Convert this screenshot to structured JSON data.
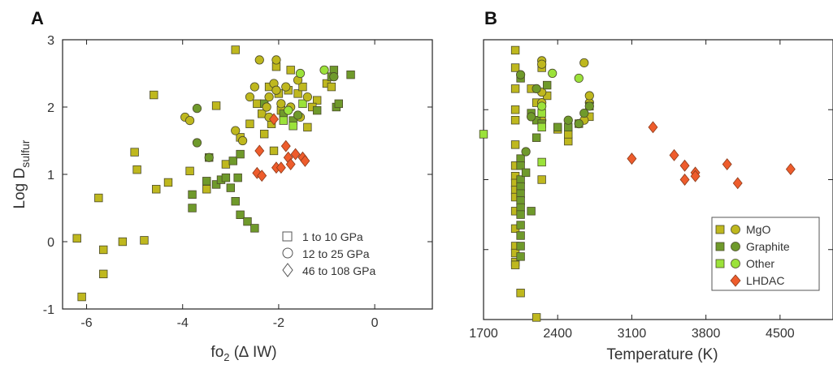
{
  "colors": {
    "mgo": "#bfb81e",
    "graphite": "#6f9a2b",
    "other": "#9be23a",
    "lhdac": "#ee5c2c",
    "mark_stroke": "#4a4a2a",
    "axis": "#222222"
  },
  "chart_data": [
    {
      "type": "scatter",
      "panel": "A",
      "title": "",
      "xlabel": "fo₂ (Δ IW)",
      "ylabel": "Log D_sulfur",
      "ylabel_main": "Log D",
      "ylabel_sub": "sulfur",
      "xlabel_main": "fo",
      "xlabel_sub": "2",
      "xlabel_tail": " (∆ IW)",
      "xlim": [
        -6.5,
        1.2
      ],
      "ylim": [
        -1,
        3
      ],
      "xticks": [
        -6,
        -4,
        -2,
        0
      ],
      "xtick_labels": [
        "-6",
        "-4",
        "-2",
        "0"
      ],
      "yticks": [
        -1,
        0,
        1,
        2,
        3
      ],
      "ytick_labels": [
        "-1",
        "0",
        "1",
        "2",
        "3"
      ],
      "grid": false,
      "legend_position": "bottom-right",
      "legend": [
        {
          "marker": "square",
          "label": "1 to 10 GPa"
        },
        {
          "marker": "circle",
          "label": "12 to 25 GPa"
        },
        {
          "marker": "diamond",
          "label": "46 to 108 GPa"
        }
      ],
      "series": [
        {
          "name": "1 to 10 GPa (MgO)",
          "marker": "square",
          "color": "mgo",
          "points": [
            [
              -6.2,
              0.05
            ],
            [
              -6.1,
              -0.82
            ],
            [
              -5.75,
              0.65
            ],
            [
              -5.65,
              -0.12
            ],
            [
              -5.65,
              -0.48
            ],
            [
              -5.25,
              0.0
            ],
            [
              -5.0,
              1.33
            ],
            [
              -4.95,
              1.07
            ],
            [
              -4.8,
              0.02
            ],
            [
              -4.6,
              2.18
            ],
            [
              -4.55,
              0.78
            ],
            [
              -4.3,
              0.88
            ],
            [
              -3.85,
              1.05
            ],
            [
              -3.5,
              0.78
            ],
            [
              -3.3,
              2.02
            ],
            [
              -3.1,
              1.15
            ],
            [
              -2.9,
              2.85
            ],
            [
              -2.8,
              1.55
            ],
            [
              -2.6,
              1.75
            ],
            [
              -2.45,
              2.05
            ],
            [
              -2.35,
              1.9
            ],
            [
              -2.3,
              1.6
            ],
            [
              -2.2,
              2.3
            ],
            [
              -2.15,
              1.75
            ],
            [
              -2.05,
              2.6
            ],
            [
              -2.0,
              2.2
            ],
            [
              -1.95,
              1.95
            ],
            [
              -1.8,
              2.25
            ],
            [
              -1.75,
              2.55
            ],
            [
              -1.6,
              2.2
            ],
            [
              -1.5,
              2.3
            ],
            [
              -1.4,
              1.7
            ],
            [
              -1.2,
              2.1
            ],
            [
              -1.0,
              2.35
            ],
            [
              -0.9,
              2.3
            ],
            [
              -2.1,
              1.35
            ],
            [
              -1.3,
              2.0
            ]
          ]
        },
        {
          "name": "1 to 10 GPa (Graphite)",
          "marker": "square",
          "color": "graphite",
          "points": [
            [
              -3.8,
              0.7
            ],
            [
              -3.8,
              0.5
            ],
            [
              -3.5,
              0.9
            ],
            [
              -3.45,
              1.25
            ],
            [
              -3.3,
              0.85
            ],
            [
              -3.2,
              0.92
            ],
            [
              -3.1,
              0.95
            ],
            [
              -3.0,
              0.8
            ],
            [
              -2.95,
              1.2
            ],
            [
              -2.9,
              0.6
            ],
            [
              -2.85,
              0.95
            ],
            [
              -2.8,
              1.3
            ],
            [
              -2.8,
              0.4
            ],
            [
              -2.65,
              0.3
            ],
            [
              -2.5,
              0.2
            ],
            [
              -2.3,
              2.05
            ],
            [
              -1.9,
              1.9
            ],
            [
              -1.7,
              1.8
            ],
            [
              -0.85,
              2.55
            ],
            [
              -0.8,
              2.0
            ],
            [
              -0.75,
              2.05
            ],
            [
              -0.9,
              2.45
            ],
            [
              -0.5,
              2.48
            ],
            [
              -1.2,
              1.95
            ]
          ]
        },
        {
          "name": "1 to 10 GPa (Other)",
          "marker": "square",
          "color": "other",
          "points": [
            [
              -1.7,
              1.72
            ],
            [
              -1.5,
              2.05
            ],
            [
              -1.9,
              1.8
            ]
          ]
        },
        {
          "name": "12 to 25 GPa (MgO)",
          "marker": "circle",
          "color": "mgo",
          "points": [
            [
              -3.95,
              1.85
            ],
            [
              -3.85,
              1.8
            ],
            [
              -2.9,
              1.65
            ],
            [
              -2.75,
              1.5
            ],
            [
              -2.6,
              2.15
            ],
            [
              -2.5,
              2.3
            ],
            [
              -2.4,
              2.7
            ],
            [
              -2.25,
              2.0
            ],
            [
              -2.2,
              2.15
            ],
            [
              -2.1,
              2.35
            ],
            [
              -2.05,
              2.25
            ],
            [
              -1.95,
              2.05
            ],
            [
              -1.85,
              2.3
            ],
            [
              -1.75,
              2.0
            ],
            [
              -1.6,
              2.4
            ],
            [
              -1.55,
              1.85
            ],
            [
              -1.4,
              2.15
            ],
            [
              -2.05,
              2.7
            ],
            [
              -2.2,
              1.85
            ]
          ]
        },
        {
          "name": "12 to 25 GPa (Graphite)",
          "marker": "circle",
          "color": "graphite",
          "points": [
            [
              -3.7,
              1.98
            ],
            [
              -3.7,
              1.47
            ],
            [
              -3.45,
              1.25
            ],
            [
              -1.6,
              1.88
            ],
            [
              -0.85,
              2.45
            ]
          ]
        },
        {
          "name": "12 to 25 GPa (Other)",
          "marker": "circle",
          "color": "other",
          "points": [
            [
              -1.05,
              2.55
            ],
            [
              -1.55,
              2.5
            ],
            [
              -1.8,
              1.95
            ]
          ]
        },
        {
          "name": "46 to 108 GPa (LHDAC)",
          "marker": "diamond",
          "color": "lhdac",
          "points": [
            [
              -2.1,
              1.82
            ],
            [
              -2.4,
              1.35
            ],
            [
              -2.45,
              1.02
            ],
            [
              -2.35,
              0.98
            ],
            [
              -2.05,
              1.1
            ],
            [
              -1.85,
              1.42
            ],
            [
              -1.8,
              1.25
            ],
            [
              -1.75,
              1.15
            ],
            [
              -1.65,
              1.3
            ],
            [
              -1.5,
              1.25
            ],
            [
              -1.45,
              1.2
            ],
            [
              -1.95,
              1.1
            ]
          ]
        }
      ]
    },
    {
      "type": "scatter",
      "panel": "B",
      "title": "",
      "xlabel": "Temperature (K)",
      "ylabel": "",
      "xlim": [
        1700,
        5000
      ],
      "ylim": [
        -1,
        3
      ],
      "xticks": [
        1700,
        2400,
        3100,
        3800,
        4500
      ],
      "xtick_labels": [
        "1700",
        "2400",
        "3100",
        "3800",
        "4500"
      ],
      "yticks": [
        -1,
        0,
        1,
        2,
        3
      ],
      "ytick_labels": [],
      "grid": false,
      "legend_position": "bottom-right",
      "legend": [
        {
          "markers": [
            "square",
            "circle"
          ],
          "color": "mgo",
          "label": "MgO"
        },
        {
          "markers": [
            "square",
            "circle"
          ],
          "color": "graphite",
          "label": "Graphite"
        },
        {
          "markers": [
            "square",
            "circle"
          ],
          "color": "other",
          "label": "Other"
        },
        {
          "markers": [
            "diamond"
          ],
          "color": "lhdac",
          "label": "LHDAC"
        }
      ],
      "series": [
        {
          "name": "MgO",
          "marker": "square",
          "color": "mgo",
          "points": [
            [
              2000,
              2.85
            ],
            [
              2000,
              2.6
            ],
            [
              2000,
              2.3
            ],
            [
              2000,
              2.0
            ],
            [
              2000,
              1.85
            ],
            [
              2000,
              1.5
            ],
            [
              2000,
              1.2
            ],
            [
              2000,
              1.05
            ],
            [
              2000,
              0.95
            ],
            [
              2000,
              0.85
            ],
            [
              2000,
              0.75
            ],
            [
              2000,
              0.55
            ],
            [
              2000,
              0.3
            ],
            [
              2000,
              0.05
            ],
            [
              2000,
              -0.05
            ],
            [
              2000,
              -0.18
            ],
            [
              2000,
              -0.22
            ],
            [
              2050,
              -0.62
            ],
            [
              2200,
              -0.97
            ],
            [
              2150,
              2.3
            ],
            [
              2200,
              2.1
            ],
            [
              2250,
              2.6
            ],
            [
              2300,
              2.2
            ],
            [
              2400,
              1.72
            ],
            [
              2500,
              1.55
            ],
            [
              2500,
              1.65
            ],
            [
              2600,
              1.8
            ],
            [
              2700,
              1.9
            ],
            [
              2250,
              1.0
            ]
          ]
        },
        {
          "name": "MgO",
          "marker": "circle",
          "color": "mgo",
          "points": [
            [
              2250,
              2.7
            ],
            [
              2250,
              2.65
            ],
            [
              2250,
              2.1
            ],
            [
              2250,
              1.85
            ],
            [
              2600,
              1.8
            ],
            [
              2650,
              1.85
            ],
            [
              2700,
              2.1
            ],
            [
              2700,
              2.2
            ],
            [
              2650,
              2.67
            ],
            [
              2250,
              2.25
            ]
          ]
        },
        {
          "name": "Graphite",
          "marker": "square",
          "color": "graphite",
          "points": [
            [
              2050,
              1.3
            ],
            [
              2050,
              1.2
            ],
            [
              2050,
              1.0
            ],
            [
              2050,
              0.9
            ],
            [
              2050,
              0.8
            ],
            [
              2050,
              0.7
            ],
            [
              2050,
              0.6
            ],
            [
              2050,
              0.5
            ],
            [
              2050,
              0.35
            ],
            [
              2050,
              0.2
            ],
            [
              2050,
              0.05
            ],
            [
              2050,
              -0.1
            ],
            [
              2050,
              2.45
            ],
            [
              2100,
              1.1
            ],
            [
              2150,
              0.55
            ],
            [
              2150,
              1.95
            ],
            [
              2200,
              1.85
            ],
            [
              2250,
              1.8
            ],
            [
              2300,
              2.35
            ],
            [
              2400,
              1.75
            ],
            [
              2500,
              1.75
            ],
            [
              2700,
              2.05
            ],
            [
              2200,
              1.6
            ]
          ]
        },
        {
          "name": "Graphite",
          "marker": "circle",
          "color": "graphite",
          "points": [
            [
              2100,
              1.4
            ],
            [
              2150,
              1.9
            ],
            [
              2200,
              2.3
            ],
            [
              2500,
              1.85
            ],
            [
              2600,
              1.8
            ],
            [
              2650,
              1.95
            ],
            [
              2700,
              2.05
            ],
            [
              2050,
              2.5
            ]
          ]
        },
        {
          "name": "Other",
          "marker": "square",
          "color": "other",
          "points": [
            [
              1700,
              1.65
            ],
            [
              2250,
              1.75
            ],
            [
              2250,
              1.25
            ],
            [
              2250,
              1.95
            ]
          ]
        },
        {
          "name": "Other",
          "marker": "circle",
          "color": "other",
          "points": [
            [
              2350,
              2.52
            ],
            [
              2600,
              2.45
            ],
            [
              2250,
              2.05
            ]
          ]
        },
        {
          "name": "LHDAC",
          "marker": "diamond",
          "color": "lhdac",
          "points": [
            [
              3100,
              1.3
            ],
            [
              3300,
              1.75
            ],
            [
              3500,
              1.35
            ],
            [
              3600,
              1.2
            ],
            [
              3600,
              1.0
            ],
            [
              3700,
              1.1
            ],
            [
              3700,
              1.05
            ],
            [
              4000,
              1.22
            ],
            [
              4100,
              0.95
            ],
            [
              4600,
              1.15
            ]
          ]
        }
      ]
    }
  ]
}
